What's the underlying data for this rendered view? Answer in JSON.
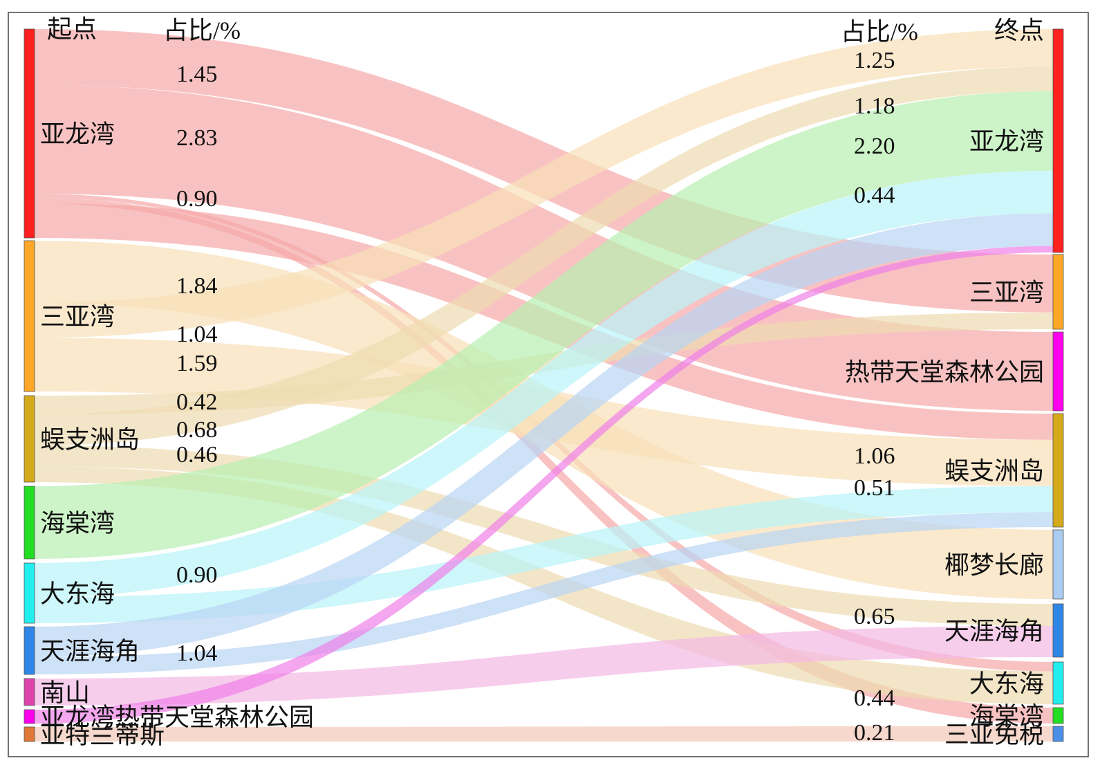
{
  "chart_data": {
    "type": "sankey",
    "headers": {
      "left_node": "起点",
      "left_value": "占比/%",
      "right_value": "占比/%",
      "right_node": "终点"
    },
    "sources": [
      {
        "id": "s1",
        "label": "亚龙湾",
        "color": "#ff2020"
      },
      {
        "id": "s2",
        "label": "三亚湾",
        "color": "#ffa726"
      },
      {
        "id": "s3",
        "label": "蜈支洲岛",
        "color": "#d4aa1a"
      },
      {
        "id": "s4",
        "label": "海棠湾",
        "color": "#22dd22"
      },
      {
        "id": "s5",
        "label": "大东海",
        "color": "#22eeee"
      },
      {
        "id": "s6",
        "label": "天涯海角",
        "color": "#2f86e6"
      },
      {
        "id": "s7",
        "label": "南山",
        "color": "#dd44aa"
      },
      {
        "id": "s8",
        "label": "亚龙湾热带天堂森林公园",
        "color": "#ff00ee"
      },
      {
        "id": "s9",
        "label": "亚特兰蒂斯",
        "color": "#e0783a"
      }
    ],
    "targets": [
      {
        "id": "t1",
        "label": "亚龙湾",
        "color": "#ff2020"
      },
      {
        "id": "t2",
        "label": "三亚湾",
        "color": "#ffa726"
      },
      {
        "id": "t3",
        "label": "热带天堂森林公园",
        "color": "#ff00ee"
      },
      {
        "id": "t4",
        "label": "蜈支洲岛",
        "color": "#d4aa1a"
      },
      {
        "id": "t5",
        "label": "椰梦长廊",
        "color": "#aaccf0"
      },
      {
        "id": "t6",
        "label": "天涯海角",
        "color": "#2f86e6"
      },
      {
        "id": "t7",
        "label": "大东海",
        "color": "#22eeee"
      },
      {
        "id": "t8",
        "label": "海棠湾",
        "color": "#22dd22"
      },
      {
        "id": "t9",
        "label": "三亚免税",
        "color": "#4a8ee6"
      }
    ],
    "links": [
      {
        "source": "s1",
        "target": "t2",
        "value": 1.45,
        "color": "#f7a8a8"
      },
      {
        "source": "s1",
        "target": "t3",
        "value": 2.83,
        "color": "#f7a8a8"
      },
      {
        "source": "s1",
        "target": "t7",
        "value": 0.1,
        "color": "#f7a8a8"
      },
      {
        "source": "s1",
        "target": "t8",
        "value": 0.15,
        "color": "#f7a8a8"
      },
      {
        "source": "s1",
        "target": "t4",
        "value": 0.9,
        "color": "#f7a8a8"
      },
      {
        "source": "s2",
        "target": "t5",
        "value": 1.84,
        "color": "#f8e0b8"
      },
      {
        "source": "s2",
        "target": "t1",
        "value": 1.04,
        "color": "#f8e0b8"
      },
      {
        "source": "s2",
        "target": "t4",
        "value": 1.59,
        "color": "#f8e0b8"
      },
      {
        "source": "s3",
        "target": "t2",
        "value": 0.42,
        "color": "#eedcb0"
      },
      {
        "source": "s3",
        "target": "t1",
        "value": 0.68,
        "color": "#eedcb0"
      },
      {
        "source": "s3",
        "target": "t6",
        "value": 0.46,
        "color": "#eedcb0"
      },
      {
        "source": "s3",
        "target": "t7",
        "value": 0.35,
        "color": "#eedcb0"
      },
      {
        "source": "s4",
        "target": "t1",
        "value": 2.2,
        "color": "#b8f0b0"
      },
      {
        "source": "s5",
        "target": "t1",
        "value": 1.18,
        "color": "#b8f4f8"
      },
      {
        "source": "s5",
        "target": "t4",
        "value": 0.9,
        "color": "#b8f4f8"
      },
      {
        "source": "s6",
        "target": "t1",
        "value": 0.9,
        "color": "#b8d4f4"
      },
      {
        "source": "s6",
        "target": "t4",
        "value": 0.51,
        "color": "#b8d4f4"
      },
      {
        "source": "s7",
        "target": "t6",
        "value": 0.65,
        "color": "#f4b8e4"
      },
      {
        "source": "s8",
        "target": "t1",
        "value": 0.18,
        "color": "#f080e8"
      },
      {
        "source": "s9",
        "target": "t9",
        "value": 0.21,
        "color": "#f4c8b8"
      }
    ],
    "left_value_labels": [
      "1.45",
      "2.83",
      "0.90",
      "1.84",
      "1.04",
      "1.59",
      "0.42",
      "0.68",
      "0.46",
      "0.90",
      "1.04"
    ],
    "right_value_labels": [
      "1.25",
      "1.18",
      "2.20",
      "0.44",
      "1.06",
      "0.51",
      "0.65",
      "0.44",
      "0.21"
    ]
  }
}
